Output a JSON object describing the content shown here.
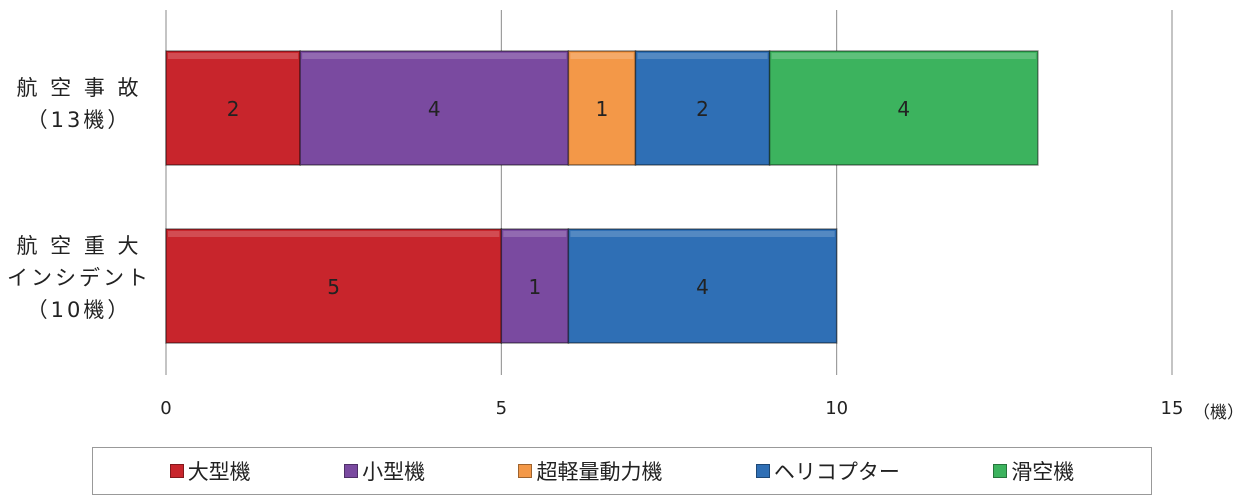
{
  "chart_data": {
    "type": "bar",
    "orientation": "horizontal",
    "stacked": true,
    "categories": [
      {
        "lines": [
          "航 空 事 故",
          "（13機）"
        ]
      },
      {
        "lines": [
          "航 空 重 大",
          "インシデント",
          "（10機）"
        ]
      }
    ],
    "series": [
      {
        "name": "大型機",
        "color": "#c8252c",
        "values": [
          2,
          5
        ]
      },
      {
        "name": "小型機",
        "color": "#7a4aa0",
        "values": [
          4,
          1
        ]
      },
      {
        "name": "超軽量動力機",
        "color": "#f39848",
        "values": [
          1,
          0
        ]
      },
      {
        "name": "ヘリコプター",
        "color": "#2f6fb5",
        "values": [
          2,
          4
        ]
      },
      {
        "name": "滑空機",
        "color": "#3cb35e",
        "values": [
          4,
          0
        ]
      }
    ],
    "xlim": [
      0,
      15
    ],
    "xticks": [
      "0",
      "5",
      "10",
      "15"
    ],
    "x_unit": "（機）",
    "grid": true,
    "legend_position": "bottom"
  }
}
